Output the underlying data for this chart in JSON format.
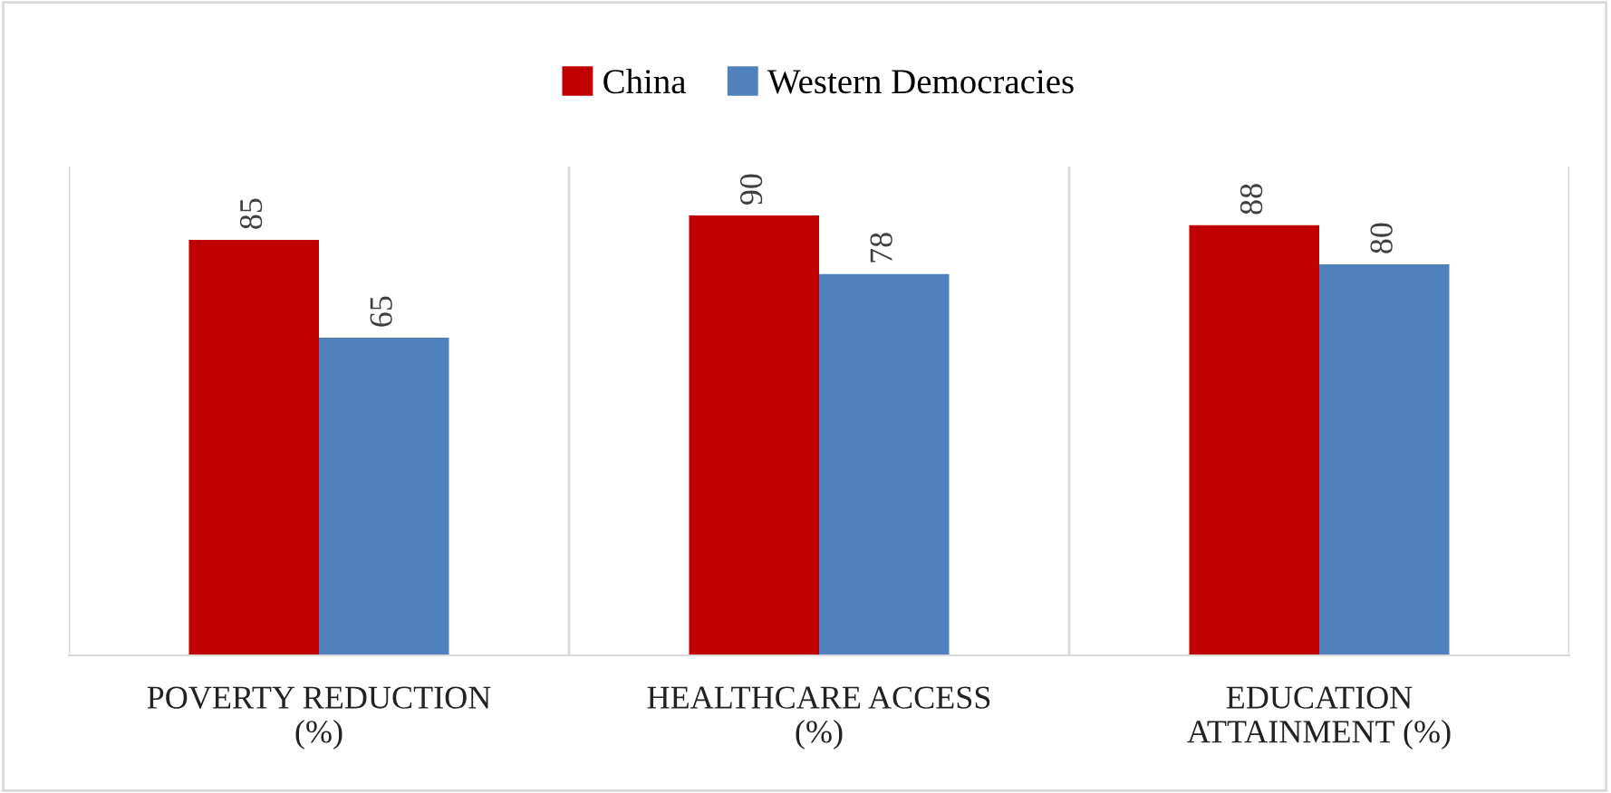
{
  "chart_data": {
    "type": "bar",
    "categories": [
      "POVERTY REDUCTION (%)",
      "HEALTHCARE ACCESS (%)",
      "EDUCATION ATTAINMENT (%)"
    ],
    "series": [
      {
        "name": "China",
        "color": "#c00000",
        "values": [
          85,
          90,
          88
        ]
      },
      {
        "name": "Western Democracies",
        "color": "#4f81bd",
        "values": [
          65,
          78,
          80
        ]
      }
    ],
    "ylim": [
      0,
      100
    ],
    "tick_labels": "x",
    "data_labels": true,
    "legend": "top",
    "grid": "x"
  }
}
